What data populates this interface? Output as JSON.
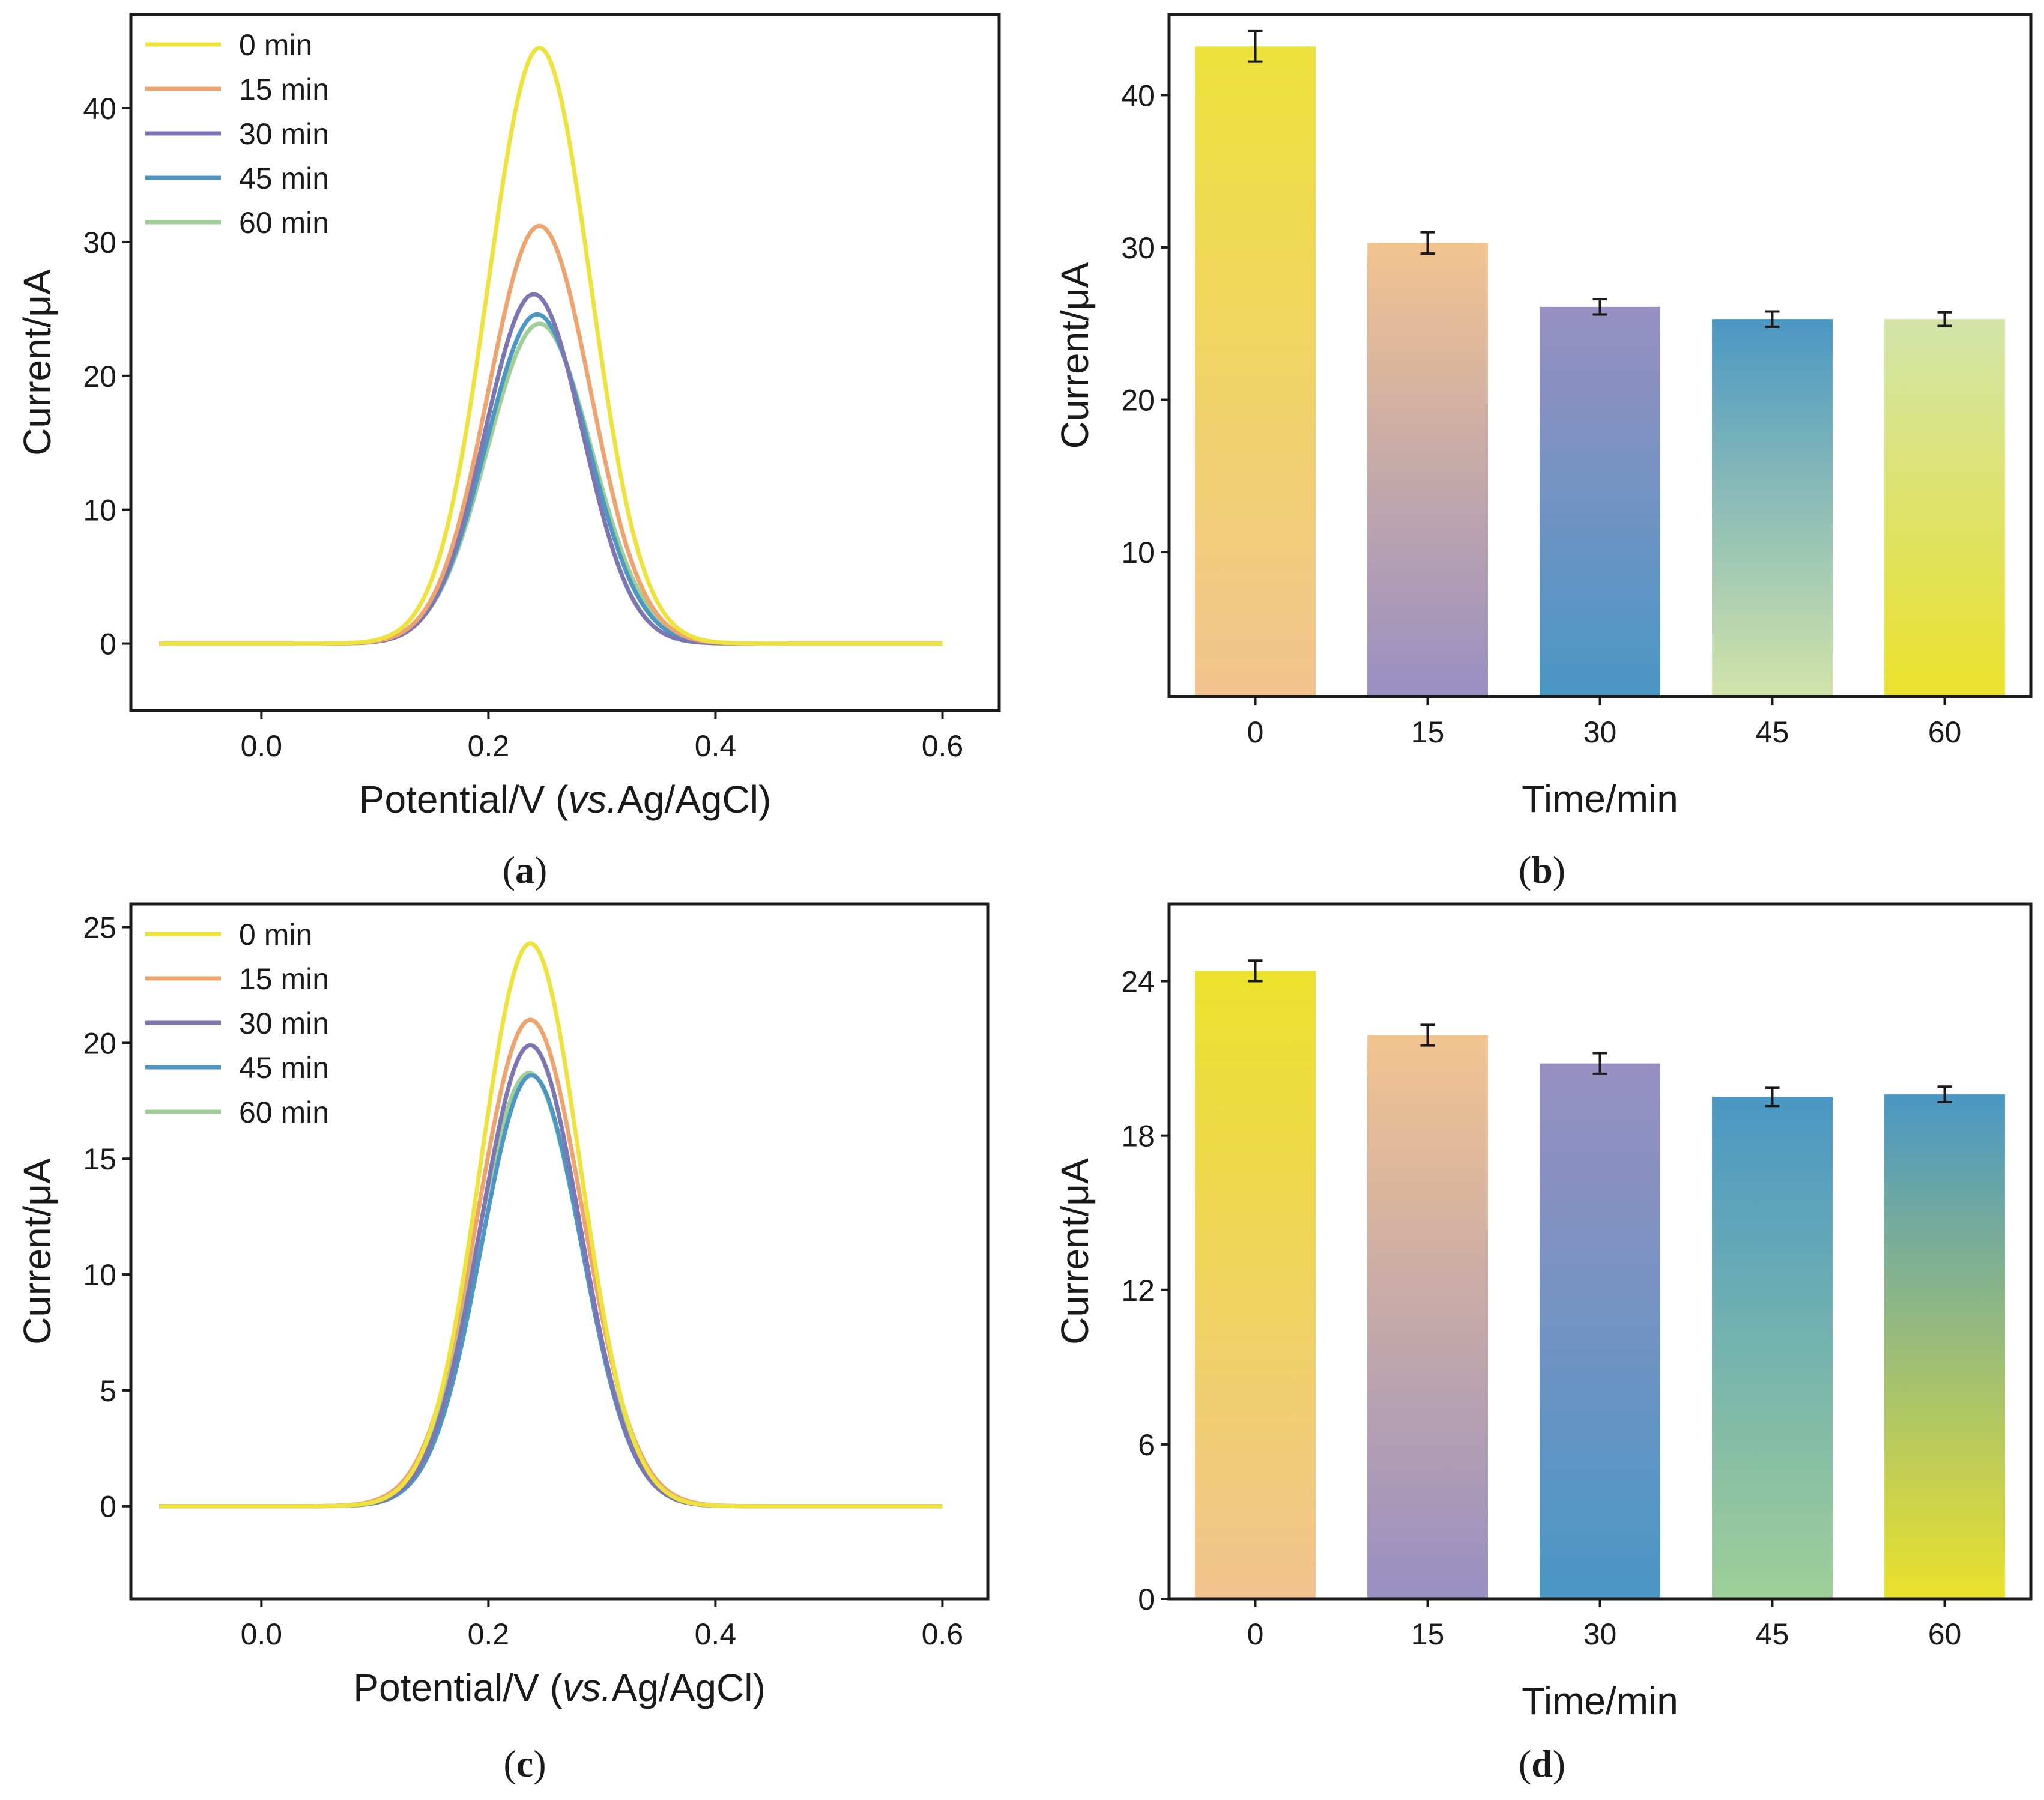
{
  "figure": {
    "panels": [
      {
        "id": "a",
        "label": "a"
      },
      {
        "id": "b",
        "label": "b"
      },
      {
        "id": "c",
        "label": "c"
      },
      {
        "id": "d",
        "label": "d"
      }
    ]
  },
  "colors": {
    "0 min": "#EDE33C",
    "15 min": "#EEA46E",
    "30 min": "#7C76B2",
    "45 min": "#4C97C4",
    "60 min": "#9FCF98"
  },
  "chart_data": [
    {
      "id": "a",
      "type": "line",
      "xlabel_prefix": "Potential/V (",
      "xlabel_italic": "vs.",
      "xlabel_suffix": "Ag/AgCl)",
      "ylabel": "Current/μA",
      "xlim": [
        -0.115,
        0.65
      ],
      "ylim": [
        -5,
        47
      ],
      "xticks": [
        0.0,
        0.2,
        0.4,
        0.6
      ],
      "xtick_labels": [
        "0.0",
        "0.2",
        "0.4",
        "0.6"
      ],
      "yticks": [
        0,
        10,
        20,
        30,
        40
      ],
      "ytick_labels": [
        "0",
        "10",
        "20",
        "30",
        "40"
      ],
      "legend_position": "top-left",
      "x_range": [
        -0.09,
        0.6
      ],
      "series": [
        {
          "name": "0 min",
          "peak_x": 0.245,
          "peak": 44.5,
          "width": 0.045,
          "color": "#EDE33C"
        },
        {
          "name": "15 min",
          "peak_x": 0.245,
          "peak": 31.2,
          "width": 0.045,
          "color": "#EEA46E"
        },
        {
          "name": "30 min",
          "peak_x": 0.24,
          "peak": 26.1,
          "width": 0.043,
          "color": "#7C76B2"
        },
        {
          "name": "45 min",
          "peak_x": 0.243,
          "peak": 24.6,
          "width": 0.045,
          "color": "#4C97C4"
        },
        {
          "name": "60 min",
          "peak_x": 0.245,
          "peak": 23.9,
          "width": 0.046,
          "color": "#9FCF98"
        }
      ]
    },
    {
      "id": "b",
      "type": "bar",
      "xlabel": "Time/min",
      "ylabel": "Current/μA",
      "categories": [
        "0",
        "15",
        "30",
        "45",
        "60"
      ],
      "values": [
        43.2,
        30.3,
        26.1,
        25.3,
        25.3
      ],
      "errors": [
        1.0,
        0.7,
        0.5,
        0.5,
        0.45
      ],
      "ylim": [
        0.5,
        45.3
      ],
      "yticks": [
        10,
        20,
        30,
        40
      ],
      "ytick_labels": [
        "10",
        "20",
        "30",
        "40"
      ],
      "bar_gradients": [
        [
          "#EDE33C",
          "#F3C490"
        ],
        [
          "#F3C490",
          "#988FC2"
        ],
        [
          "#988FC2",
          "#4A97C4"
        ],
        [
          "#4A97C4",
          "#D2E4A9"
        ],
        [
          "#D2E4A9",
          "#EBE22C"
        ]
      ]
    },
    {
      "id": "c",
      "type": "line",
      "xlabel_prefix": "Potential/V (",
      "xlabel_italic": "vs.",
      "xlabel_suffix": "Ag/AgCl)",
      "ylabel": "Current/μA",
      "xlim": [
        -0.115,
        0.64
      ],
      "ylim": [
        -4,
        26
      ],
      "xticks": [
        0.0,
        0.2,
        0.4,
        0.6
      ],
      "xtick_labels": [
        "0.0",
        "0.2",
        "0.4",
        "0.6"
      ],
      "yticks": [
        0,
        5,
        10,
        15,
        20,
        25
      ],
      "ytick_labels": [
        "0",
        "5",
        "10",
        "15",
        "20",
        "25"
      ],
      "legend_position": "top-left",
      "x_range": [
        -0.09,
        0.6
      ],
      "series": [
        {
          "name": "0 min",
          "peak_x": 0.237,
          "peak": 24.3,
          "width": 0.044,
          "color": "#EDE33C"
        },
        {
          "name": "15 min",
          "peak_x": 0.237,
          "peak": 21.0,
          "width": 0.046,
          "color": "#EEA46E"
        },
        {
          "name": "30 min",
          "peak_x": 0.237,
          "peak": 19.9,
          "width": 0.044,
          "color": "#7C76B2"
        },
        {
          "name": "45 min",
          "peak_x": 0.238,
          "peak": 18.6,
          "width": 0.044,
          "color": "#4C97C4"
        },
        {
          "name": "60 min",
          "peak_x": 0.236,
          "peak": 18.7,
          "width": 0.046,
          "color": "#9FCF98"
        }
      ]
    },
    {
      "id": "d",
      "type": "bar",
      "xlabel": "Time/min",
      "ylabel": "Current/μA",
      "categories": [
        "0",
        "15",
        "30",
        "45",
        "60"
      ],
      "values": [
        24.4,
        21.9,
        20.8,
        19.5,
        19.6
      ],
      "errors": [
        0.4,
        0.4,
        0.4,
        0.35,
        0.3
      ],
      "ylim": [
        0,
        27
      ],
      "yticks": [
        0,
        6,
        12,
        18,
        24
      ],
      "ytick_labels": [
        "0",
        "6",
        "12",
        "18",
        "24"
      ],
      "bar_gradients": [
        [
          "#EBE22C",
          "#F3C490"
        ],
        [
          "#F3C490",
          "#988FC2"
        ],
        [
          "#988FC2",
          "#4A97C4"
        ],
        [
          "#4A97C4",
          "#9FCF98"
        ],
        [
          "#4A97C4",
          "#EBE22C"
        ]
      ]
    }
  ]
}
